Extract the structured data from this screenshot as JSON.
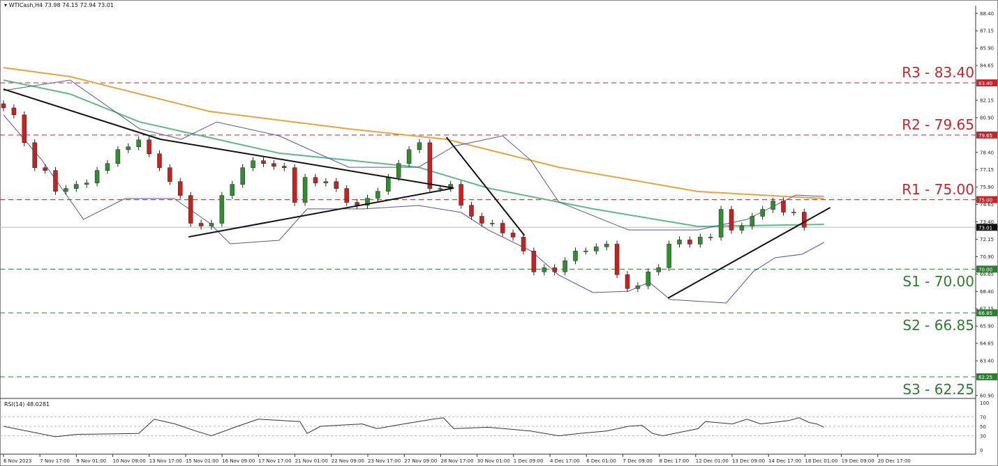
{
  "header": {
    "symbol": "WTICash,H4",
    "ohlc": "73.98 74.15 72.94 73.01"
  },
  "rsi_label": "RSI(14) 48.0281",
  "colors": {
    "bull": "#2f8f2f",
    "bear": "#cc1f1f",
    "resistance": "#c1272d",
    "support": "#2e7d32",
    "ma_slow": "#e8a33d",
    "ma_fast": "#5fb88a",
    "bollinger": "#55559a"
  },
  "chart_data": {
    "type": "candlestick",
    "title": "WTICash,H4",
    "ylim": [
      60.4,
      89.0
    ],
    "y_ticks": [
      "88.40",
      "87.15",
      "85.90",
      "84.65",
      "82.15",
      "80.90",
      "78.40",
      "77.15",
      "75.90",
      "74.65",
      "73.40",
      "72.15",
      "70.90",
      "69.65",
      "68.40",
      "67.15",
      "65.90",
      "64.65",
      "63.40",
      "60.90"
    ],
    "x_ticks": [
      "6 Nov 2023",
      "7 Nov 17:00",
      "9 Nov 01:00",
      "10 Nov 09:00",
      "13 Nov 17:00",
      "15 Nov 01:00",
      "16 Nov 09:00",
      "17 Nov 17:00",
      "21 Nov 01:00",
      "22 Nov 09:00",
      "23 Nov 17:00",
      "27 Nov 09:00",
      "28 Nov 17:00",
      "30 Nov 01:00",
      "1 Dec 09:00",
      "4 Dec 17:00",
      "6 Dec 01:00",
      "7 Dec 09:00",
      "8 Dec 17:00",
      "12 Dec 01:00",
      "13 Dec 09:00",
      "14 Dec 17:00",
      "18 Dec 01:00",
      "19 Dec 09:00",
      "20 Dec 17:00"
    ],
    "closes": [
      81.6,
      81.1,
      79.1,
      77.3,
      77.1,
      75.6,
      75.8,
      76.1,
      76.2,
      77.1,
      77.6,
      78.6,
      78.8,
      79.3,
      78.3,
      77.3,
      76.3,
      75.3,
      73.3,
      73.1,
      73.3,
      75.3,
      76.1,
      77.3,
      77.8,
      77.6,
      77.4,
      77.3,
      74.8,
      76.6,
      76.2,
      76.3,
      75.8,
      74.8,
      74.6,
      75.1,
      75.6,
      76.6,
      77.6,
      78.6,
      79.1,
      75.8,
      75.8,
      76.1,
      74.6,
      73.8,
      73.3,
      73.3,
      72.6,
      72.3,
      71.3,
      69.8,
      70.1,
      69.8,
      70.6,
      71.3,
      71.3,
      71.6,
      71.8,
      69.6,
      68.6,
      68.8,
      69.8,
      70.1,
      71.8,
      72.1,
      71.8,
      72.3,
      72.3,
      74.3,
      72.8,
      73.1,
      73.8,
      74.3,
      74.9,
      74.1,
      74.1,
      73.01
    ],
    "current_price": {
      "value": 73.01,
      "label": "73.01"
    },
    "levels": [
      {
        "name": "R3",
        "value": 83.4,
        "label": "R3 - 83.40",
        "tag": "83.40",
        "kind": "resistance"
      },
      {
        "name": "R2",
        "value": 79.65,
        "label": "R2 - 79.65",
        "tag": "79.65",
        "kind": "resistance"
      },
      {
        "name": "R1",
        "value": 75.0,
        "label": "R1 - 75.00",
        "tag": "75.00",
        "kind": "resistance"
      },
      {
        "name": "S1",
        "value": 70.0,
        "label": "S1 - 70.00",
        "tag": "70.00",
        "kind": "support"
      },
      {
        "name": "S2",
        "value": 66.85,
        "label": "S2 - 66.85",
        "tag": "66.85",
        "kind": "support"
      },
      {
        "name": "S3",
        "value": 62.25,
        "label": "S3 - 62.25",
        "tag": "62.25",
        "kind": "support"
      }
    ],
    "ma_slow": [
      [
        0,
        84.5
      ],
      [
        6.4,
        83.85
      ],
      [
        19.8,
        81.35
      ],
      [
        33.2,
        80.09
      ],
      [
        42.6,
        79.34
      ],
      [
        53.4,
        77.33
      ],
      [
        66.8,
        75.58
      ],
      [
        78.9,
        75.08
      ]
    ],
    "ma_fast": [
      [
        0,
        83.6
      ],
      [
        6.4,
        82.6
      ],
      [
        13.1,
        80.59
      ],
      [
        26.5,
        78.34
      ],
      [
        39.9,
        77.33
      ],
      [
        46.6,
        75.83
      ],
      [
        56.7,
        74.33
      ],
      [
        66.8,
        73.07
      ],
      [
        78.9,
        73.22
      ]
    ],
    "bb_upper": [
      [
        0,
        82.85
      ],
      [
        6.4,
        83.6
      ],
      [
        13.1,
        80.09
      ],
      [
        17.1,
        79.34
      ],
      [
        20.5,
        80.59
      ],
      [
        26.5,
        79.59
      ],
      [
        33.2,
        77.33
      ],
      [
        39.9,
        77.33
      ],
      [
        43.3,
        78.84
      ],
      [
        48,
        79.59
      ],
      [
        50.7,
        77.84
      ],
      [
        53.4,
        74.83
      ],
      [
        60.1,
        72.82
      ],
      [
        66.8,
        72.82
      ],
      [
        71.5,
        73.58
      ],
      [
        76.2,
        75.33
      ],
      [
        78.9,
        75.23
      ]
    ],
    "bb_lower": [
      [
        0,
        81.1
      ],
      [
        3.7,
        77.84
      ],
      [
        7.7,
        73.58
      ],
      [
        11.7,
        75.08
      ],
      [
        16.4,
        75.08
      ],
      [
        19.8,
        73.32
      ],
      [
        21.8,
        71.82
      ],
      [
        26.5,
        72.07
      ],
      [
        29.2,
        74.33
      ],
      [
        34.6,
        74.33
      ],
      [
        39.9,
        74.58
      ],
      [
        44,
        74.08
      ],
      [
        46.6,
        72.82
      ],
      [
        50.7,
        71.32
      ],
      [
        53.4,
        69.57
      ],
      [
        56.7,
        68.31
      ],
      [
        60.1,
        68.41
      ],
      [
        62.1,
        69.06
      ],
      [
        64.1,
        67.81
      ],
      [
        69.5,
        67.56
      ],
      [
        72.1,
        69.82
      ],
      [
        74.2,
        70.82
      ],
      [
        76.8,
        71.07
      ],
      [
        78.9,
        71.92
      ]
    ],
    "trendlines": [
      [
        [
          0,
          82.95
        ],
        [
          15.1,
          79.34
        ]
      ],
      [
        [
          15.1,
          79.34
        ],
        [
          43.3,
          75.83
        ]
      ],
      [
        [
          17.8,
          72.32
        ],
        [
          43.3,
          75.83
        ]
      ],
      [
        [
          42.6,
          79.49
        ],
        [
          50.1,
          72.42
        ]
      ],
      [
        [
          63.9,
          67.91
        ],
        [
          79.5,
          74.43
        ]
      ]
    ],
    "rsi": {
      "period": 14,
      "value": 48.0281,
      "levels": [
        70,
        50,
        30
      ],
      "y_ticks": [
        "100",
        "70",
        "50",
        "30",
        "0"
      ],
      "series": [
        [
          0,
          50
        ],
        [
          5,
          28
        ],
        [
          7,
          33
        ],
        [
          13,
          35
        ],
        [
          14.5,
          65
        ],
        [
          16.5,
          55
        ],
        [
          18.5,
          40
        ],
        [
          20,
          30
        ],
        [
          22.5,
          50
        ],
        [
          24.5,
          65
        ],
        [
          28.5,
          60
        ],
        [
          29.2,
          35
        ],
        [
          30.5,
          50
        ],
        [
          34.5,
          55
        ],
        [
          35.9,
          45
        ],
        [
          38.5,
          55
        ],
        [
          41.3,
          65
        ],
        [
          42.3,
          68
        ],
        [
          43.3,
          45
        ],
        [
          46.6,
          48
        ],
        [
          50.7,
          40
        ],
        [
          53.4,
          30
        ],
        [
          55.4,
          35
        ],
        [
          58,
          40
        ],
        [
          60.1,
          50
        ],
        [
          61.4,
          52
        ],
        [
          62.4,
          35
        ],
        [
          63.4,
          30
        ],
        [
          66.8,
          45
        ],
        [
          67.5,
          60
        ],
        [
          70.1,
          55
        ],
        [
          71.5,
          65
        ],
        [
          72.8,
          55
        ],
        [
          75.5,
          62
        ],
        [
          76.5,
          68
        ],
        [
          77.5,
          58
        ],
        [
          78.2,
          55
        ],
        [
          78.9,
          48
        ]
      ]
    }
  }
}
